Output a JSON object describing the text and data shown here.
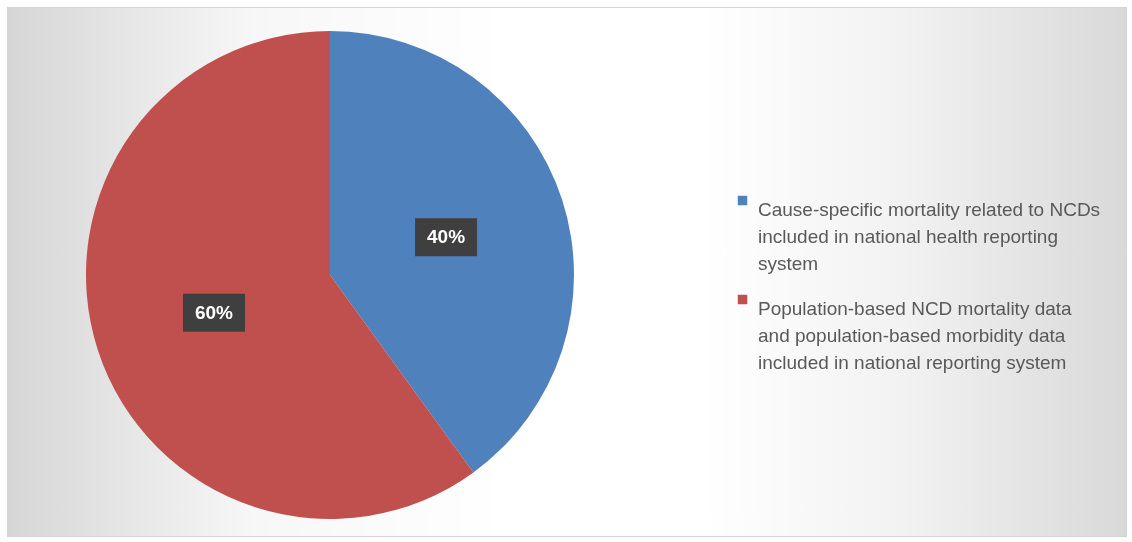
{
  "chart_data": {
    "type": "pie",
    "categories": [
      "Cause-specific mortality related to NCDs included in national health reporting system",
      "Population-based NCD mortality data and population-based morbidity data included in national reporting system"
    ],
    "values": [
      40,
      60
    ],
    "colors": [
      "#4f81bd",
      "#c0504d"
    ],
    "value_labels": [
      "40%",
      "60%"
    ],
    "legend": "right"
  }
}
